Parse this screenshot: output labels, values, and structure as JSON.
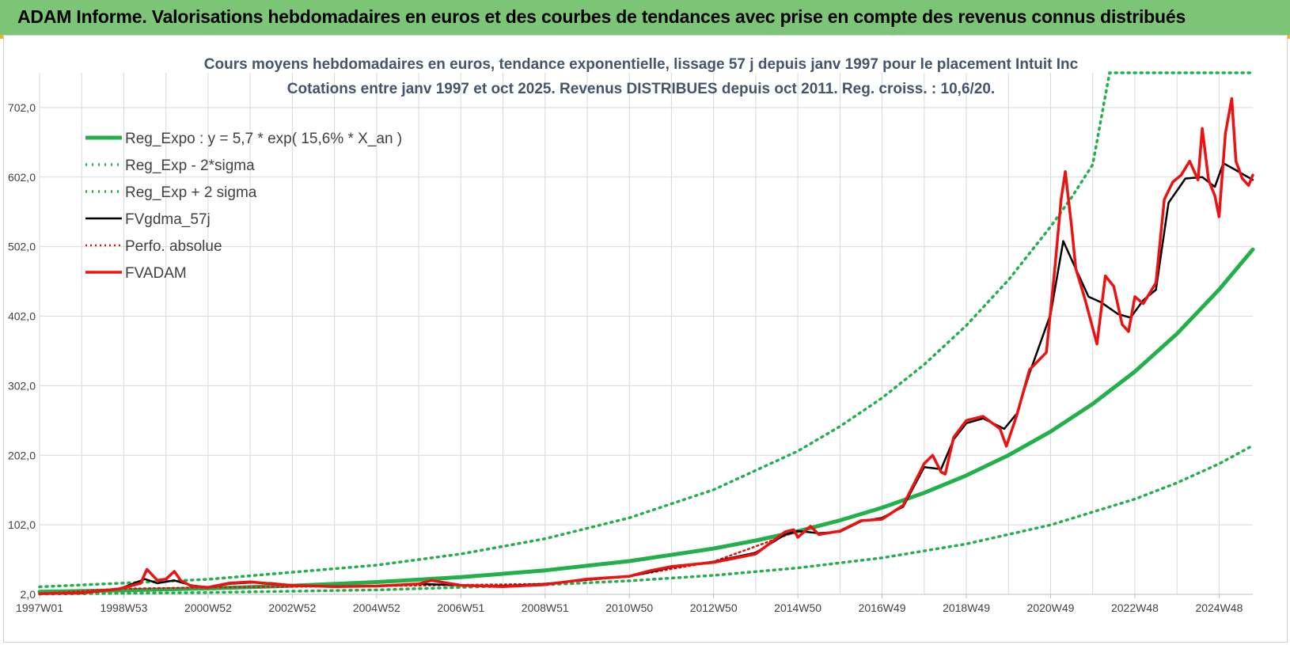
{
  "header": {
    "title": "ADAM Informe. Valorisations hebdomadaires en euros et des courbes de tendances avec prise en compte des revenus connus distribués"
  },
  "colors": {
    "banner": "#7cc576",
    "reg_expo": "#22b04b",
    "reg_band": "#22b04b",
    "fvgdma": "#000000",
    "perfo": "#d11a1a",
    "fvadam": "#ee1111",
    "grid": "#d9d9d9"
  },
  "chart_data": {
    "type": "line",
    "title": "Cours moyens hebdomadaires en euros, tendance exponentielle, lissage 57 j depuis janv 1997 pour le placement Intuit Inc",
    "subtitle": "Cotations entre janv 1997 et oct 2025. Revenus DISTRIBUES depuis oct 2011. Reg. croiss. : 10,6/20.",
    "xlabel": "",
    "ylabel": "",
    "ylim": [
      2.0,
      752.0
    ],
    "yticks": [
      "2,0",
      "102,0",
      "202,0",
      "302,0",
      "402,0",
      "502,0",
      "602,0",
      "702,0"
    ],
    "xlim": [
      1997.0,
      2025.8
    ],
    "xticks": [
      "1997W01",
      "1998W53",
      "2000W52",
      "2002W52",
      "2004W52",
      "2006W51",
      "2008W51",
      "2010W50",
      "2012W50",
      "2014W50",
      "2016W49",
      "2018W49",
      "2020W49",
      "2022W48",
      "2024W48"
    ],
    "grid": true,
    "legend_position": "top-left",
    "series": [
      {
        "name": "Reg_Expo : y = 5,7 * exp( 15,6% *  X_an )",
        "style": "solid-thick",
        "x": [
          1997.0,
          1999.0,
          2001.0,
          2003.0,
          2005.0,
          2007.0,
          2009.0,
          2011.0,
          2013.0,
          2014.0,
          2015.0,
          2016.0,
          2017.0,
          2018.0,
          2019.0,
          2020.0,
          2021.0,
          2022.0,
          2023.0,
          2024.0,
          2025.0,
          2025.8
        ],
        "values": [
          5.7,
          7.8,
          10.5,
          14.4,
          19.6,
          26.7,
          36.5,
          49.8,
          67.9,
          79.4,
          92.7,
          108.4,
          126.6,
          148.0,
          172.9,
          202.1,
          236.1,
          275.9,
          322.4,
          376.8,
          440.3,
          498.0
        ]
      },
      {
        "name": "Reg_Exp - 2*sigma",
        "style": "dotted",
        "x": [
          1997.0,
          2001.0,
          2005.0,
          2009.0,
          2011.0,
          2013.0,
          2015.0,
          2017.0,
          2019.0,
          2021.0,
          2023.0,
          2024.0,
          2025.0,
          2025.8
        ],
        "values": [
          2.5,
          4.6,
          8.4,
          15.8,
          21.5,
          29.3,
          40.0,
          54.5,
          74.5,
          101.8,
          139.0,
          162.4,
          189.8,
          216.0
        ]
      },
      {
        "name": "Reg_Exp + 2 sigma",
        "style": "dotted",
        "x": [
          1997.0,
          2001.0,
          2005.0,
          2007.0,
          2009.0,
          2011.0,
          2013.0,
          2015.0,
          2016.0,
          2017.0,
          2018.0,
          2019.0,
          2020.0,
          2021.0,
          2021.5,
          2022.0,
          2022.4,
          2023.0,
          2024.0,
          2025.0,
          2025.8
        ],
        "values": [
          12.8,
          23.6,
          44.0,
          60.0,
          82.0,
          112.0,
          152.5,
          208.0,
          243.5,
          284.5,
          332.5,
          388.6,
          454.2,
          530.8,
          573.0,
          620.0,
          752.0,
          752.0,
          752.0,
          752.0,
          752.0
        ]
      },
      {
        "name": "FVgdma_57j",
        "style": "solid",
        "x": [
          1997.0,
          1998.0,
          1998.9,
          1999.5,
          1999.8,
          2000.2,
          2000.6,
          2001.0,
          2001.5,
          2002.0,
          2002.5,
          2003.0,
          2004.0,
          2005.0,
          2006.0,
          2007.0,
          2008.0,
          2009.0,
          2010.0,
          2011.0,
          2011.5,
          2012.0,
          2013.0,
          2014.0,
          2014.7,
          2015.0,
          2015.5,
          2016.0,
          2016.5,
          2017.0,
          2017.5,
          2018.0,
          2018.4,
          2018.7,
          2019.0,
          2019.4,
          2019.9,
          2020.2,
          2020.5,
          2021.0,
          2021.3,
          2021.6,
          2021.9,
          2022.2,
          2022.6,
          2022.9,
          2023.2,
          2023.5,
          2023.8,
          2024.2,
          2024.6,
          2024.9,
          2025.1,
          2025.4,
          2025.8
        ],
        "values": [
          3.0,
          3.5,
          10.0,
          24.0,
          18.0,
          22.0,
          15.0,
          12.0,
          17.0,
          19.0,
          18.0,
          15.0,
          13.0,
          14.0,
          17.0,
          15.0,
          14.0,
          17.0,
          23.0,
          28.0,
          34.0,
          41.0,
          49.0,
          62.0,
          88.0,
          93.0,
          90.0,
          92.0,
          107.0,
          112.0,
          128.0,
          185.0,
          182.0,
          225.0,
          248.0,
          255.0,
          240.0,
          262.0,
          320.0,
          405.0,
          510.0,
          470.0,
          430.0,
          422.0,
          405.0,
          400.0,
          425.0,
          440.0,
          565.0,
          600.0,
          602.0,
          588.0,
          622.0,
          612.0,
          598.0
        ]
      },
      {
        "name": "Perfo. absolue",
        "style": "dotted",
        "x": [
          1997.0,
          1998.9,
          2001.0,
          2005.0,
          2009.0,
          2011.0,
          2013.0,
          2015.0
        ],
        "values": [
          3.0,
          10.0,
          12.0,
          14.0,
          17.0,
          28.0,
          49.0,
          93.0
        ]
      },
      {
        "name": "FVADAM",
        "style": "solid-thick",
        "x": [
          1997.0,
          1998.0,
          1998.9,
          1999.4,
          1999.55,
          1999.8,
          2000.0,
          2000.2,
          2000.35,
          2000.6,
          2001.0,
          2001.5,
          2002.0,
          2002.5,
          2003.0,
          2004.0,
          2005.0,
          2006.0,
          2006.3,
          2007.0,
          2008.0,
          2009.0,
          2010.0,
          2011.0,
          2011.5,
          2012.0,
          2013.0,
          2014.0,
          2014.7,
          2014.9,
          2015.0,
          2015.3,
          2015.5,
          2016.0,
          2016.5,
          2017.0,
          2017.5,
          2018.0,
          2018.2,
          2018.4,
          2018.5,
          2018.7,
          2019.0,
          2019.4,
          2019.8,
          2019.95,
          2020.2,
          2020.5,
          2020.9,
          2021.1,
          2021.25,
          2021.35,
          2021.5,
          2021.6,
          2021.8,
          2022.1,
          2022.3,
          2022.5,
          2022.7,
          2022.85,
          2023.0,
          2023.2,
          2023.5,
          2023.7,
          2023.9,
          2024.1,
          2024.3,
          2024.5,
          2024.6,
          2024.75,
          2024.9,
          2025.0,
          2025.15,
          2025.3,
          2025.4,
          2025.55,
          2025.7,
          2025.8
        ],
        "values": [
          3.0,
          4.0,
          10.0,
          18.0,
          38.0,
          22.0,
          24.0,
          35.0,
          22.0,
          14.0,
          12.0,
          18.0,
          20.0,
          17.0,
          15.0,
          13.0,
          14.0,
          17.0,
          22.0,
          15.0,
          13.0,
          16.0,
          24.0,
          28.0,
          36.0,
          42.0,
          48.0,
          60.0,
          92.0,
          95.0,
          84.0,
          100.0,
          88.0,
          93.0,
          108.0,
          110.0,
          130.0,
          190.0,
          202.0,
          178.0,
          175.0,
          228.0,
          252.0,
          258.0,
          240.0,
          215.0,
          260.0,
          325.0,
          350.0,
          470.0,
          570.0,
          610.0,
          530.0,
          470.0,
          430.0,
          362.0,
          460.0,
          445.0,
          390.0,
          380.0,
          430.0,
          420.0,
          450.0,
          570.0,
          595.0,
          605.0,
          625.0,
          598.0,
          672.0,
          598.0,
          575.0,
          545.0,
          665.0,
          715.0,
          625.0,
          600.0,
          590.0,
          605.0
        ]
      }
    ]
  }
}
